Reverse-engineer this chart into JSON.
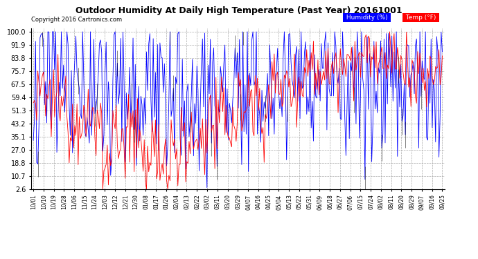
{
  "title": "Outdoor Humidity At Daily High Temperature (Past Year) 20161001",
  "copyright": "Copyright 2016 Cartronics.com",
  "legend_humidity": "Humidity (%)",
  "legend_temp": "Temp (°F)",
  "humidity_color": "blue",
  "temp_color": "red",
  "bg_color": "#ffffff",
  "grid_color": "#aaaaaa",
  "yticks": [
    2.6,
    10.7,
    18.8,
    27.0,
    35.1,
    43.2,
    51.3,
    59.4,
    67.5,
    75.7,
    83.8,
    91.9,
    100.0
  ],
  "xtick_labels": [
    "10/01",
    "10/10",
    "10/19",
    "10/28",
    "11/06",
    "11/15",
    "11/24",
    "12/03",
    "12/12",
    "12/21",
    "12/30",
    "01/08",
    "01/17",
    "01/26",
    "02/04",
    "02/13",
    "02/22",
    "03/02",
    "03/11",
    "03/20",
    "03/29",
    "04/07",
    "04/16",
    "04/25",
    "05/04",
    "05/13",
    "05/22",
    "05/31",
    "06/09",
    "06/18",
    "06/27",
    "07/06",
    "07/15",
    "07/24",
    "08/02",
    "08/11",
    "08/20",
    "08/29",
    "09/07",
    "09/16",
    "09/25"
  ],
  "ymin": 2.6,
  "ymax": 102
}
